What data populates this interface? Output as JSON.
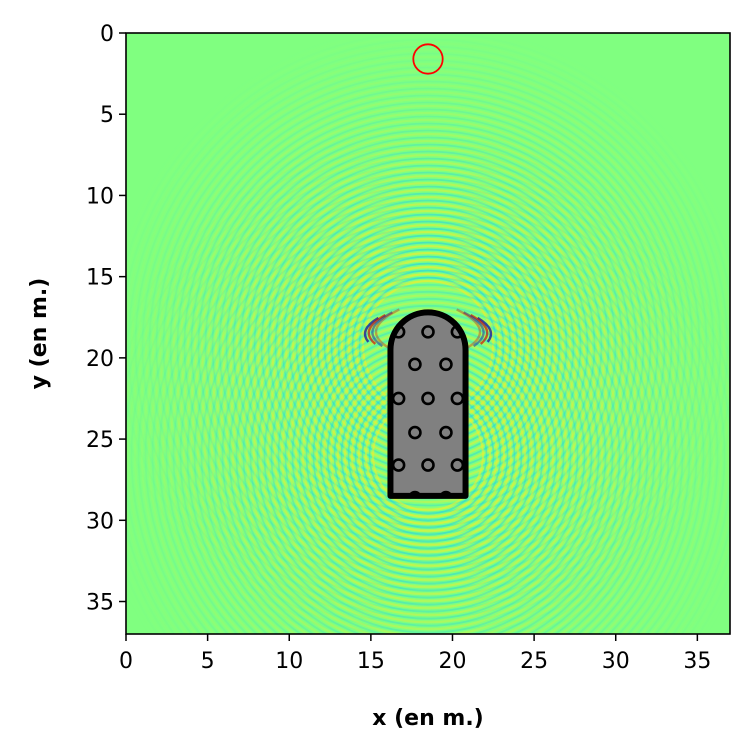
{
  "chart_data": {
    "type": "heatmap",
    "title": "",
    "xlabel": "x (en m.)",
    "ylabel": "y (en m.)",
    "xlim": [
      0,
      37
    ],
    "ylim": [
      37,
      0
    ],
    "x_ticks": [
      0,
      5,
      10,
      15,
      20,
      25,
      30,
      35
    ],
    "y_ticks": [
      0,
      5,
      10,
      15,
      20,
      25,
      30,
      35
    ],
    "grid": false,
    "colormap": "jet",
    "background_color": "#80ff80",
    "source_marker": {
      "x": 18.5,
      "y": 1.6,
      "radius": 0.9,
      "color": "#ff0000"
    },
    "obstacle": {
      "x_min": 16.2,
      "x_max": 20.8,
      "y_top": 17.2,
      "y_bottom": 28.5,
      "fill_color": "#808080",
      "edge_color": "#000000"
    },
    "inclusions": [
      {
        "x": 16.7,
        "y": 18.4
      },
      {
        "x": 18.5,
        "y": 18.4
      },
      {
        "x": 20.3,
        "y": 18.4
      },
      {
        "x": 17.7,
        "y": 20.4
      },
      {
        "x": 19.6,
        "y": 20.4
      },
      {
        "x": 16.7,
        "y": 22.5
      },
      {
        "x": 18.5,
        "y": 22.5
      },
      {
        "x": 20.3,
        "y": 22.5
      },
      {
        "x": 17.7,
        "y": 24.6
      },
      {
        "x": 19.6,
        "y": 24.6
      },
      {
        "x": 16.7,
        "y": 26.6
      },
      {
        "x": 18.5,
        "y": 26.6
      },
      {
        "x": 20.3,
        "y": 26.6
      },
      {
        "x": 17.7,
        "y": 28.6
      },
      {
        "x": 19.6,
        "y": 28.6
      }
    ]
  }
}
